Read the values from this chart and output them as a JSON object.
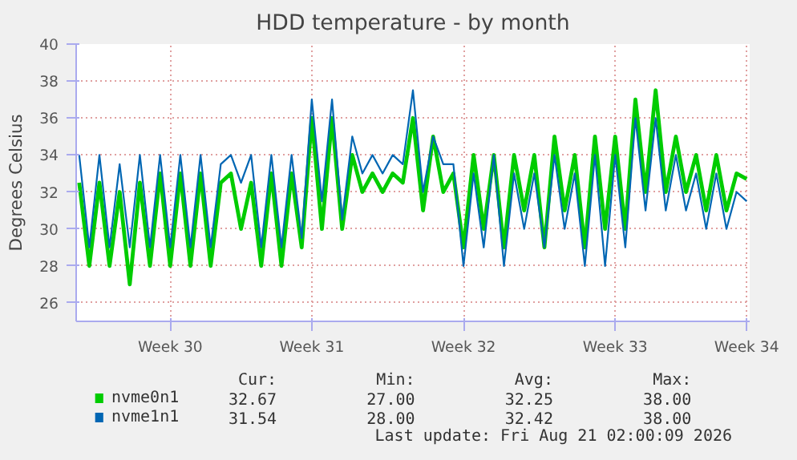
{
  "chart_data": {
    "type": "line",
    "title": "HDD temperature - by month",
    "ylabel": "Degrees Celsius",
    "categories": [
      null,
      null,
      null,
      null,
      null,
      null,
      null,
      null,
      null,
      "Week 30",
      null,
      null,
      null,
      null,
      null,
      null,
      null,
      null,
      null,
      null,
      null,
      null,
      null,
      "Week 31",
      null,
      null,
      null,
      null,
      null,
      null,
      null,
      null,
      null,
      null,
      null,
      null,
      null,
      null,
      "Week 32",
      null,
      null,
      null,
      null,
      null,
      null,
      null,
      null,
      null,
      null,
      null,
      null,
      null,
      null,
      "Week 33",
      null,
      null,
      null,
      null,
      null,
      null,
      null,
      null,
      null,
      null,
      null,
      null,
      "Week 34"
    ],
    "series": [
      {
        "name": "nvme0n1",
        "color": "#00cc00",
        "values": [
          32.5,
          28,
          32.5,
          28,
          32,
          27,
          32.5,
          28,
          33,
          28,
          33,
          28,
          33,
          28,
          32.5,
          33,
          30,
          32.5,
          28,
          33,
          28,
          33,
          29,
          36,
          30,
          36,
          30,
          34,
          32,
          33,
          32,
          33,
          32.5,
          36,
          31,
          35,
          32,
          33,
          29,
          34,
          30,
          34,
          29,
          34,
          31,
          34,
          29,
          35,
          31,
          34,
          29,
          35,
          30,
          35,
          30,
          37,
          32,
          37.5,
          32,
          35,
          32,
          34,
          31,
          34,
          31,
          33,
          32.7
        ]
      },
      {
        "name": "nvme1n1",
        "color": "#0066b3",
        "values": [
          34,
          29,
          34,
          29,
          33.5,
          29,
          34,
          29,
          34,
          29,
          34,
          29,
          34,
          29,
          33.5,
          34,
          32.5,
          34,
          29,
          34,
          29,
          34,
          29.5,
          37,
          31.5,
          37,
          30.5,
          35,
          33,
          34,
          33,
          34,
          33.5,
          37.5,
          32,
          35,
          33.5,
          33.5,
          28,
          33,
          29,
          34,
          28,
          33,
          30,
          33,
          29,
          34,
          30,
          33,
          28,
          34,
          28,
          34,
          29,
          36,
          31,
          36,
          31,
          34,
          31,
          33,
          30,
          33,
          30,
          32,
          31.5
        ]
      }
    ],
    "ylim": [
      25,
      40
    ],
    "yticks": [
      26,
      28,
      30,
      32,
      34,
      36,
      38,
      40
    ],
    "grid": true,
    "legend": "bottom",
    "line_style": "solid",
    "annotations": [
      "Cur:",
      "Min:",
      "Avg:",
      "Max:",
      "32.67",
      "27.00",
      "32.25",
      "38.00",
      "31.54",
      "28.00",
      "32.42",
      "38.00",
      "Last update: Fri Aug 21 02:00:09 2026"
    ]
  }
}
